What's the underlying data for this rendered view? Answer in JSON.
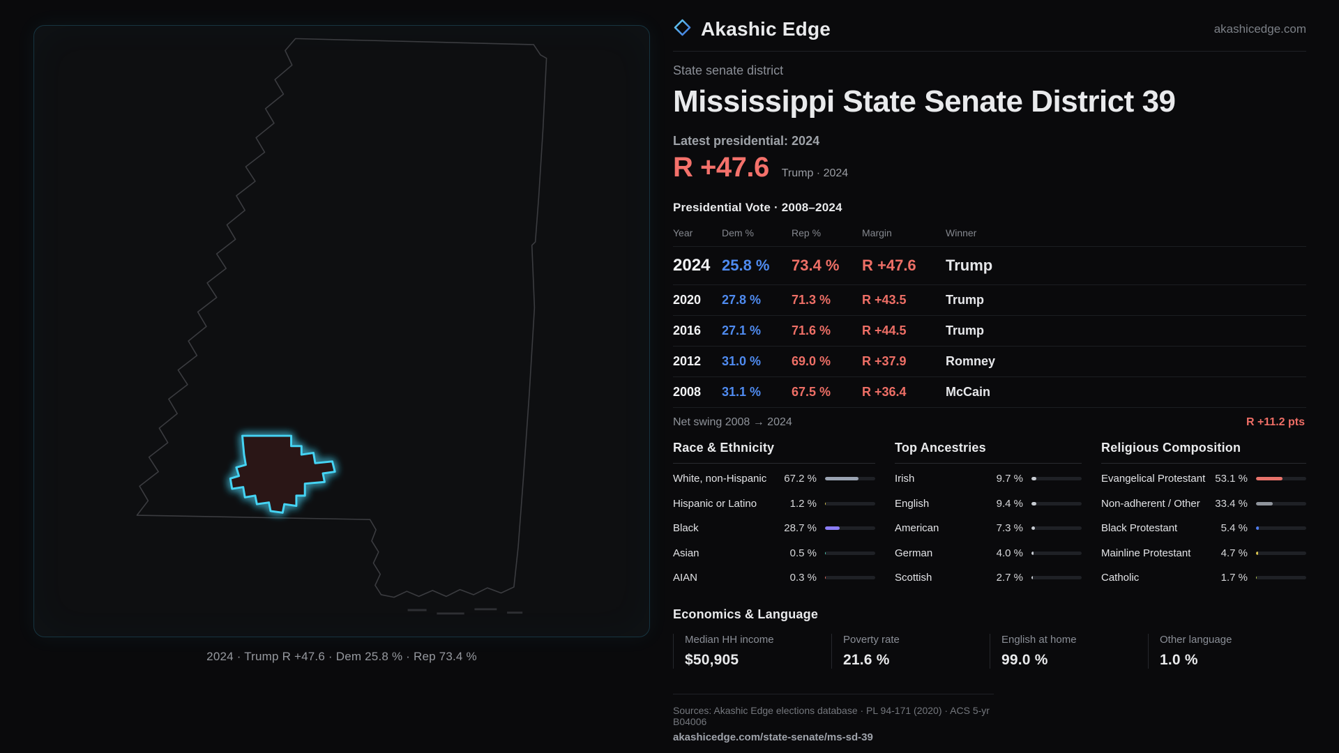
{
  "brand": {
    "name": "Akashic Edge",
    "domain": "akashicedge.com"
  },
  "header": {
    "kicker": "State senate district",
    "title": "Mississippi State Senate District 39",
    "latest_label": "Latest presidential: 2024",
    "headline_margin": "R +47.6",
    "headline_context": "Trump · 2024"
  },
  "map": {
    "caption": "2024 · Trump R +47.6 · Dem 25.8 % · Rep 73.4 %"
  },
  "vote": {
    "title": "Presidential Vote · 2008–2024",
    "columns": [
      "Year",
      "Dem %",
      "Rep %",
      "Margin",
      "Winner"
    ],
    "rows": [
      {
        "year": "2024",
        "dem": "25.8 %",
        "rep": "73.4 %",
        "margin": "R +47.6",
        "winner": "Trump"
      },
      {
        "year": "2020",
        "dem": "27.8 %",
        "rep": "71.3 %",
        "margin": "R +43.5",
        "winner": "Trump"
      },
      {
        "year": "2016",
        "dem": "27.1 %",
        "rep": "71.6 %",
        "margin": "R +44.5",
        "winner": "Trump"
      },
      {
        "year": "2012",
        "dem": "31.0 %",
        "rep": "69.0 %",
        "margin": "R +37.9",
        "winner": "Romney"
      },
      {
        "year": "2008",
        "dem": "31.1 %",
        "rep": "67.5 %",
        "margin": "R +36.4",
        "winner": "McCain"
      }
    ],
    "net_swing_label": "Net swing 2008 → 2024",
    "net_swing_value": "R +11.2 pts"
  },
  "race": {
    "title": "Race & Ethnicity",
    "rows": [
      {
        "label": "White, non-Hispanic",
        "value": "67.2 %",
        "pct": 67.2,
        "color": "#9aa3b2"
      },
      {
        "label": "Hispanic or Latino",
        "value": "1.2 %",
        "pct": 1.2,
        "color": "#d9c44e"
      },
      {
        "label": "Black",
        "value": "28.7 %",
        "pct": 28.7,
        "color": "#8b7df6"
      },
      {
        "label": "Asian",
        "value": "0.5 %",
        "pct": 0.5,
        "color": "#4ec9b0"
      },
      {
        "label": "AIAN",
        "value": "0.3 %",
        "pct": 0.3,
        "color": "#e06a5f"
      }
    ]
  },
  "ancestries": {
    "title": "Top Ancestries",
    "rows": [
      {
        "label": "Irish",
        "value": "9.7 %",
        "pct": 9.7,
        "color": "#c7cbd2"
      },
      {
        "label": "English",
        "value": "9.4 %",
        "pct": 9.4,
        "color": "#c7cbd2"
      },
      {
        "label": "American",
        "value": "7.3 %",
        "pct": 7.3,
        "color": "#c7cbd2"
      },
      {
        "label": "German",
        "value": "4.0 %",
        "pct": 4.0,
        "color": "#c7cbd2"
      },
      {
        "label": "Scottish",
        "value": "2.7 %",
        "pct": 2.7,
        "color": "#c7cbd2"
      }
    ]
  },
  "religion": {
    "title": "Religious Composition",
    "rows": [
      {
        "label": "Evangelical Protestant",
        "value": "53.1 %",
        "pct": 53.1,
        "color": "#e8736b"
      },
      {
        "label": "Non-adherent / Other",
        "value": "33.4 %",
        "pct": 33.4,
        "color": "#8f949c"
      },
      {
        "label": "Black Protestant",
        "value": "5.4 %",
        "pct": 5.4,
        "color": "#4f7df0"
      },
      {
        "label": "Mainline Protestant",
        "value": "4.7 %",
        "pct": 4.7,
        "color": "#d9c44e"
      },
      {
        "label": "Catholic",
        "value": "1.7 %",
        "pct": 1.7,
        "color": "#b3c94e"
      }
    ]
  },
  "economics": {
    "title": "Economics & Language",
    "stats": [
      {
        "label": "Median HH income",
        "value": "$50,905"
      },
      {
        "label": "Poverty rate",
        "value": "21.6 %"
      },
      {
        "label": "English at home",
        "value": "99.0 %"
      },
      {
        "label": "Other language",
        "value": "1.0 %"
      }
    ]
  },
  "footer": {
    "sources": "Sources: Akashic Edge elections database · PL 94-171 (2020) · ACS 5-yr B04006",
    "permalink": "akashicedge.com/state-senate/ms-sd-39"
  },
  "colors": {
    "rep": "#ee6f66",
    "dem": "#4f8bf0",
    "accent": "#45d4f4"
  }
}
